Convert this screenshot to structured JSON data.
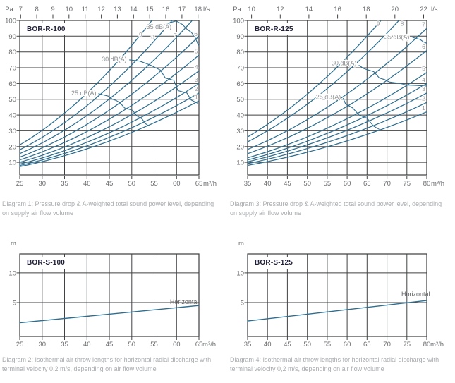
{
  "colors": {
    "background": "#ffffff",
    "curve": "#2d6e90",
    "grid": "#404244",
    "border": "#3a3c3e",
    "tick_text": "#696b6e",
    "unit_text": "#696b6e",
    "db_label_text": "#8d8f92",
    "curve_num_text": "#97999c",
    "title_text": "#20203a",
    "caption_text": "#a8abae",
    "horizontal_label_text": "#5f6163",
    "title_box_bg": "#ffffff"
  },
  "chart_data": [
    {
      "kind": "pressure_sound",
      "type": "line",
      "title": "BOR-R-100",
      "pressure_unit": "Pa",
      "flow_unit_top": "l/s",
      "flow_unit_bottom": "m³/h",
      "x_range": [
        25,
        65
      ],
      "y_range": [
        2,
        100
      ],
      "x_ticks_m3h": [
        25,
        30,
        35,
        40,
        45,
        50,
        55,
        60,
        65
      ],
      "y_ticks_pa": [
        10,
        20,
        30,
        40,
        50,
        60,
        70,
        80,
        90,
        100
      ],
      "top_ticks_ls": [
        7,
        8,
        9,
        10,
        11,
        12,
        13,
        14,
        15,
        16,
        17,
        18
      ],
      "ls_to_m3h": 3.6,
      "fan_curves": [
        {
          "label": "1",
          "q_end": 65,
          "p_end": 49,
          "label_pos": [
            64.4,
            51.5
          ]
        },
        {
          "label": "2",
          "q_end": 65,
          "p_end": 54,
          "label_pos": [
            64.4,
            56.5
          ]
        },
        {
          "label": "3",
          "q_end": 65,
          "p_end": 60,
          "label_pos": [
            64.4,
            62.5
          ]
        },
        {
          "label": "4",
          "q_end": 65,
          "p_end": 68,
          "label_pos": [
            64.4,
            70.5
          ]
        },
        {
          "label": "5",
          "q_end": 65,
          "p_end": 78,
          "label_pos": [
            64.4,
            80.5
          ]
        },
        {
          "label": "6",
          "q_end": 65,
          "p_end": 90,
          "label_pos": [
            64.3,
            91.5
          ]
        },
        {
          "label": "7",
          "q_end": 63.5,
          "p_end": 100,
          "label_pos": [
            59.7,
            90.5
          ]
        },
        {
          "label": "8",
          "q_end": 59,
          "p_end": 100,
          "label_pos": [
            54.7,
            89.5
          ]
        },
        {
          "label": "9",
          "q_end": 54.5,
          "p_end": 100,
          "label_pos": [
            52.0,
            91.0
          ]
        }
      ],
      "db_contours": [
        {
          "label": "25 dB(A)",
          "label_pos": [
            42.4,
            54.0
          ],
          "points": [
            [
              42.6,
              53.5
            ],
            [
              44.8,
              52
            ],
            [
              45.7,
              50
            ],
            [
              46.5,
              49.3
            ],
            [
              47.4,
              47.8
            ],
            [
              48.4,
              44.5
            ],
            [
              50.2,
              43
            ],
            [
              51.1,
              39.5
            ],
            [
              52.3,
              37.5
            ],
            [
              53.1,
              34.5
            ],
            [
              53.7,
              33.3
            ]
          ]
        },
        {
          "label": "30 dB(A)",
          "label_pos": [
            49.2,
            75.5
          ],
          "points": [
            [
              49.5,
              75
            ],
            [
              51.8,
              74.2
            ],
            [
              53.4,
              72.5
            ],
            [
              54.3,
              71.5
            ],
            [
              56.4,
              68.5
            ],
            [
              57.5,
              63.5
            ],
            [
              59.4,
              62
            ],
            [
              60.3,
              55.5
            ],
            [
              62.3,
              54
            ],
            [
              63.3,
              49.5
            ],
            [
              64.7,
              47.5
            ]
          ]
        },
        {
          "label": "35 dB(A)",
          "label_pos": [
            59.2,
            96.0
          ],
          "points": [
            [
              56.8,
              96.5
            ],
            [
              58.4,
              98.5
            ],
            [
              59.9,
              99.7
            ],
            [
              61.3,
              97.5
            ],
            [
              62.3,
              94.5
            ],
            [
              63.3,
              92.5
            ],
            [
              64.1,
              89.5
            ],
            [
              64.7,
              85.5
            ],
            [
              65,
              84
            ]
          ]
        }
      ],
      "caption": "Diagram 1: Pressure drop & A-weighted total sound power level, depending on supply air flow volume"
    },
    {
      "kind": "throw",
      "type": "line",
      "title": "BOR-S-100",
      "y_unit": "m",
      "x_unit": "m³/h",
      "x_range": [
        25,
        65
      ],
      "y_range": [
        -0.7,
        13.2
      ],
      "x_ticks_m3h": [
        25,
        30,
        35,
        40,
        45,
        50,
        55,
        60,
        65
      ],
      "y_ticks_m": [
        5,
        10
      ],
      "line": {
        "label": "Horizontal",
        "points": [
          [
            25,
            1.6
          ],
          [
            65,
            4.5
          ]
        ],
        "label_pos": [
          64.9,
          5.1
        ]
      },
      "caption": "Diagram 2: Isothermal air throw lengths for horizontal radial discharge with terminal velocity 0,2 m/s, depending on air flow volume"
    },
    {
      "kind": "pressure_sound",
      "type": "line",
      "title": "BOR-R-125",
      "pressure_unit": "Pa",
      "flow_unit_top": "l/s",
      "flow_unit_bottom": "m³/h",
      "x_range": [
        35,
        80
      ],
      "y_range": [
        2,
        100
      ],
      "x_ticks_m3h": [
        35,
        40,
        45,
        50,
        55,
        60,
        65,
        70,
        75,
        80
      ],
      "y_ticks_pa": [
        10,
        20,
        30,
        40,
        50,
        60,
        70,
        80,
        90,
        100
      ],
      "top_ticks_ls": [
        10,
        12,
        14,
        16,
        18,
        20,
        22
      ],
      "ls_to_m3h": 3.6,
      "fan_curves": [
        {
          "label": "1",
          "q_end": 80,
          "p_end": 42,
          "label_pos": [
            79.2,
            44.5
          ]
        },
        {
          "label": "2",
          "q_end": 80,
          "p_end": 48,
          "label_pos": [
            79.2,
            50.5
          ]
        },
        {
          "label": "3",
          "q_end": 80,
          "p_end": 54,
          "label_pos": [
            79.2,
            56.5
          ]
        },
        {
          "label": "4",
          "q_end": 80,
          "p_end": 60,
          "label_pos": [
            79.2,
            62.5
          ]
        },
        {
          "label": "5",
          "q_end": 80,
          "p_end": 67,
          "label_pos": [
            79.2,
            69.5
          ]
        },
        {
          "label": "6",
          "q_end": 80,
          "p_end": 81,
          "label_pos": [
            79.2,
            83.5
          ]
        },
        {
          "label": "7",
          "q_end": 80,
          "p_end": 95,
          "label_pos": [
            79.2,
            97.5
          ]
        },
        {
          "label": "8",
          "q_end": 73,
          "p_end": 100,
          "label_pos": [
            73.8,
            98.0
          ]
        },
        {
          "label": "9",
          "q_end": 68.5,
          "p_end": 100,
          "label_pos": [
            67.8,
            98.0
          ]
        }
      ],
      "db_contours": [
        {
          "label": "25 dB(A)",
          "label_pos": [
            58.8,
            51.5
          ],
          "points": [
            [
              59,
              50.5
            ],
            [
              59.6,
              47
            ],
            [
              61.4,
              44.5
            ],
            [
              63,
              40
            ],
            [
              65,
              38
            ],
            [
              66.6,
              33
            ],
            [
              68,
              31
            ]
          ]
        },
        {
          "label": "30 dB(A)",
          "label_pos": [
            62.7,
            73.0
          ],
          "points": [
            [
              63,
              71.5
            ],
            [
              64.2,
              69.5
            ],
            [
              66.7,
              67.5
            ],
            [
              68.1,
              63.5
            ],
            [
              69.4,
              62.5
            ],
            [
              70.6,
              61
            ],
            [
              73.4,
              60
            ],
            [
              75,
              59
            ],
            [
              77.2,
              58.8
            ],
            [
              80,
              58.4
            ]
          ]
        },
        {
          "label": "35 dB(A)",
          "label_pos": [
            76.0,
            89.5
          ],
          "points": [
            [
              76.3,
              89.5
            ],
            [
              77.3,
              88.5
            ],
            [
              78.3,
              88
            ],
            [
              79.1,
              86.5
            ],
            [
              80,
              85.5
            ]
          ]
        }
      ],
      "caption": "Diagram 3: Pressure drop & A-weighted total sound power level, depending on supply air flow volume"
    },
    {
      "kind": "throw",
      "type": "line",
      "title": "BOR-S-125",
      "y_unit": "m",
      "x_unit": "m³/h",
      "x_range": [
        35,
        80
      ],
      "y_range": [
        -0.7,
        13.2
      ],
      "x_ticks_m3h": [
        35,
        40,
        45,
        50,
        55,
        60,
        65,
        70,
        75,
        80
      ],
      "y_ticks_m": [
        5,
        10
      ],
      "line": {
        "label": "Horizontal",
        "points": [
          [
            35,
            1.9
          ],
          [
            80,
            5.35
          ]
        ],
        "label_pos": [
          80.8,
          6.4
        ]
      },
      "caption": "Diagram 4: Isothermal air throw lengths for horizontal radial discharge with terminal velocity 0,2 m/s, depending on air flow volume"
    }
  ]
}
